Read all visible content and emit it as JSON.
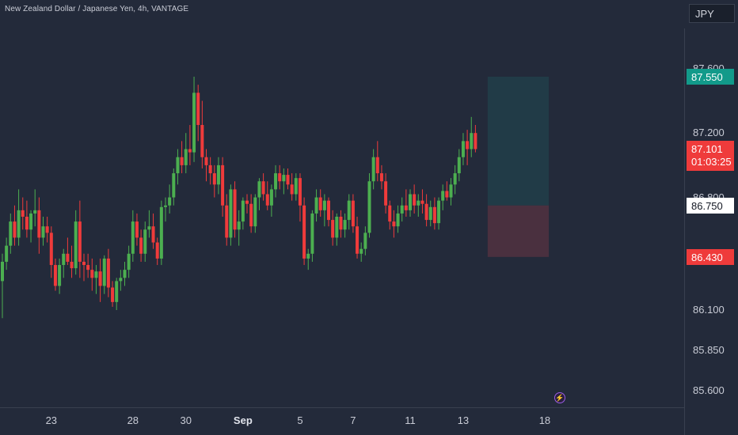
{
  "chart_data": {
    "type": "candlestick",
    "title": "New Zealand Dollar / Japanese Yen, 4h, VANTAGE",
    "currency": "JPY",
    "y_ticks": [
      "87.600",
      "87.200",
      "86.800",
      "86.100",
      "85.850",
      "85.600"
    ],
    "ylim": [
      85.53,
      87.83
    ],
    "x_labels": [
      {
        "text": "23",
        "bold": false,
        "index": 12
      },
      {
        "text": "28",
        "bold": false,
        "index": 32
      },
      {
        "text": "30",
        "bold": false,
        "index": 45
      },
      {
        "text": "Sep",
        "bold": true,
        "index": 59
      },
      {
        "text": "5",
        "bold": false,
        "index": 73
      },
      {
        "text": "7",
        "bold": false,
        "index": 86
      },
      {
        "text": "11",
        "bold": false,
        "index": 100
      },
      {
        "text": "13",
        "bold": false,
        "index": 113
      },
      {
        "text": "18",
        "bold": false,
        "index": 133
      }
    ],
    "price_tags": {
      "target": "87.550",
      "current": "87.101",
      "countdown": "01:03:25",
      "entry": "86.750",
      "stop": "86.430"
    },
    "position": {
      "entry": 86.75,
      "target": 87.55,
      "stop": 86.43,
      "start_index": 119,
      "end_index": 134
    },
    "colors": {
      "up": "#4caf50",
      "down": "#ef3b3b",
      "background": "#232a3a"
    },
    "candles": [
      [
        86.28,
        86.45,
        86.05,
        86.4
      ],
      [
        86.4,
        86.55,
        86.35,
        86.5
      ],
      [
        86.5,
        86.7,
        86.45,
        86.65
      ],
      [
        86.65,
        86.75,
        86.5,
        86.55
      ],
      [
        86.55,
        86.85,
        86.5,
        86.72
      ],
      [
        86.72,
        86.8,
        86.6,
        86.68
      ],
      [
        86.68,
        86.78,
        86.55,
        86.6
      ],
      [
        86.6,
        86.72,
        86.52,
        86.7
      ],
      [
        86.7,
        86.85,
        86.62,
        86.72
      ],
      [
        86.72,
        86.8,
        86.45,
        86.55
      ],
      [
        86.55,
        86.68,
        86.5,
        86.62
      ],
      [
        86.62,
        86.68,
        86.52,
        86.58
      ],
      [
        86.58,
        86.62,
        86.3,
        86.38
      ],
      [
        86.38,
        86.42,
        86.22,
        86.25
      ],
      [
        86.25,
        86.42,
        86.2,
        86.38
      ],
      [
        86.38,
        86.48,
        86.3,
        86.45
      ],
      [
        86.45,
        86.55,
        86.38,
        86.4
      ],
      [
        86.4,
        86.5,
        86.3,
        86.36
      ],
      [
        86.36,
        86.72,
        86.32,
        86.65
      ],
      [
        86.65,
        86.78,
        86.3,
        86.4
      ],
      [
        86.4,
        86.45,
        86.28,
        86.38
      ],
      [
        86.38,
        86.45,
        86.3,
        86.35
      ],
      [
        86.35,
        86.42,
        86.22,
        86.3
      ],
      [
        86.3,
        86.38,
        86.2,
        86.34
      ],
      [
        86.34,
        86.42,
        86.15,
        86.25
      ],
      [
        86.25,
        86.44,
        86.2,
        86.42
      ],
      [
        86.42,
        86.48,
        86.18,
        86.24
      ],
      [
        86.24,
        86.28,
        86.12,
        86.15
      ],
      [
        86.15,
        86.3,
        86.1,
        86.28
      ],
      [
        86.28,
        86.35,
        86.22,
        86.3
      ],
      [
        86.3,
        86.4,
        86.25,
        86.35
      ],
      [
        86.35,
        86.5,
        86.3,
        86.45
      ],
      [
        86.45,
        86.72,
        86.4,
        86.65
      ],
      [
        86.65,
        86.7,
        86.5,
        86.55
      ],
      [
        86.55,
        86.6,
        86.4,
        86.45
      ],
      [
        86.45,
        86.65,
        86.4,
        86.6
      ],
      [
        86.6,
        86.72,
        86.55,
        86.62
      ],
      [
        86.62,
        86.7,
        86.48,
        86.52
      ],
      [
        86.52,
        86.55,
        86.38,
        86.42
      ],
      [
        86.42,
        86.78,
        86.38,
        86.74
      ],
      [
        86.74,
        86.8,
        86.65,
        86.75
      ],
      [
        86.75,
        86.88,
        86.7,
        86.8
      ],
      [
        86.8,
        86.98,
        86.75,
        86.95
      ],
      [
        86.95,
        87.1,
        86.88,
        87.05
      ],
      [
        87.05,
        87.15,
        86.95,
        87.0
      ],
      [
        87.0,
        87.2,
        86.95,
        87.1
      ],
      [
        87.1,
        87.25,
        87.0,
        87.08
      ],
      [
        87.08,
        87.55,
        87.02,
        87.45
      ],
      [
        87.45,
        87.5,
        87.15,
        87.25
      ],
      [
        87.25,
        87.4,
        86.98,
        87.05
      ],
      [
        87.05,
        87.1,
        86.9,
        87.0
      ],
      [
        87.0,
        87.05,
        86.88,
        86.95
      ],
      [
        86.95,
        87.0,
        86.8,
        86.88
      ],
      [
        86.88,
        87.05,
        86.82,
        87.0
      ],
      [
        87.0,
        87.05,
        86.68,
        86.75
      ],
      [
        86.75,
        86.82,
        86.5,
        86.55
      ],
      [
        86.55,
        86.88,
        86.5,
        86.85
      ],
      [
        86.85,
        86.9,
        86.55,
        86.6
      ],
      [
        86.6,
        86.72,
        86.5,
        86.65
      ],
      [
        86.65,
        86.8,
        86.6,
        86.78
      ],
      [
        86.78,
        86.82,
        86.7,
        86.76
      ],
      [
        86.76,
        86.82,
        86.58,
        86.62
      ],
      [
        86.62,
        86.82,
        86.58,
        86.8
      ],
      [
        86.8,
        86.92,
        86.72,
        86.9
      ],
      [
        86.9,
        86.95,
        86.78,
        86.82
      ],
      [
        86.82,
        86.9,
        86.72,
        86.75
      ],
      [
        86.75,
        86.88,
        86.68,
        86.85
      ],
      [
        86.85,
        87.0,
        86.8,
        86.95
      ],
      [
        86.95,
        87.0,
        86.85,
        86.9
      ],
      [
        86.9,
        86.98,
        86.82,
        86.94
      ],
      [
        86.94,
        86.98,
        86.85,
        86.88
      ],
      [
        86.88,
        86.95,
        86.78,
        86.82
      ],
      [
        86.82,
        86.95,
        86.78,
        86.92
      ],
      [
        86.92,
        86.95,
        86.65,
        86.75
      ],
      [
        86.75,
        86.8,
        86.38,
        86.42
      ],
      [
        86.42,
        86.48,
        86.35,
        86.45
      ],
      [
        86.45,
        86.72,
        86.4,
        86.7
      ],
      [
        86.7,
        86.85,
        86.65,
        86.8
      ],
      [
        86.8,
        86.85,
        86.68,
        86.72
      ],
      [
        86.72,
        86.82,
        86.62,
        86.78
      ],
      [
        86.78,
        86.8,
        86.62,
        86.66
      ],
      [
        86.66,
        86.72,
        86.5,
        86.55
      ],
      [
        86.55,
        86.7,
        86.5,
        86.68
      ],
      [
        86.68,
        86.72,
        86.55,
        86.6
      ],
      [
        86.6,
        86.7,
        86.55,
        86.66
      ],
      [
        86.66,
        86.82,
        86.6,
        86.78
      ],
      [
        86.78,
        86.82,
        86.58,
        86.62
      ],
      [
        86.62,
        86.68,
        86.42,
        86.45
      ],
      [
        86.45,
        86.52,
        86.4,
        86.48
      ],
      [
        86.48,
        86.62,
        86.44,
        86.58
      ],
      [
        86.58,
        86.95,
        86.55,
        86.9
      ],
      [
        86.9,
        87.1,
        86.85,
        87.05
      ],
      [
        87.05,
        87.15,
        86.9,
        86.95
      ],
      [
        86.95,
        87.0,
        86.85,
        86.9
      ],
      [
        86.9,
        86.95,
        86.7,
        86.75
      ],
      [
        86.75,
        86.78,
        86.6,
        86.65
      ],
      [
        86.65,
        86.72,
        86.55,
        86.62
      ],
      [
        86.62,
        86.75,
        86.58,
        86.7
      ],
      [
        86.7,
        86.8,
        86.65,
        86.75
      ],
      [
        86.75,
        86.85,
        86.68,
        86.72
      ],
      [
        86.72,
        86.85,
        86.68,
        86.82
      ],
      [
        86.82,
        86.88,
        86.7,
        86.75
      ],
      [
        86.75,
        86.82,
        86.68,
        86.78
      ],
      [
        86.78,
        86.85,
        86.7,
        86.76
      ],
      [
        86.76,
        86.82,
        86.62,
        86.66
      ],
      [
        86.66,
        86.78,
        86.62,
        86.74
      ],
      [
        86.74,
        86.8,
        86.6,
        86.64
      ],
      [
        86.64,
        86.8,
        86.6,
        86.78
      ],
      [
        86.78,
        86.88,
        86.72,
        86.84
      ],
      [
        86.84,
        86.9,
        86.78,
        86.8
      ],
      [
        86.8,
        86.92,
        86.75,
        86.88
      ],
      [
        86.88,
        87.0,
        86.82,
        86.95
      ],
      [
        86.95,
        87.1,
        86.9,
        87.05
      ],
      [
        87.05,
        87.2,
        87.0,
        87.15
      ],
      [
        87.15,
        87.22,
        87.0,
        87.1
      ],
      [
        87.1,
        87.3,
        87.05,
        87.2
      ],
      [
        87.2,
        87.25,
        87.08,
        87.1
      ]
    ]
  }
}
